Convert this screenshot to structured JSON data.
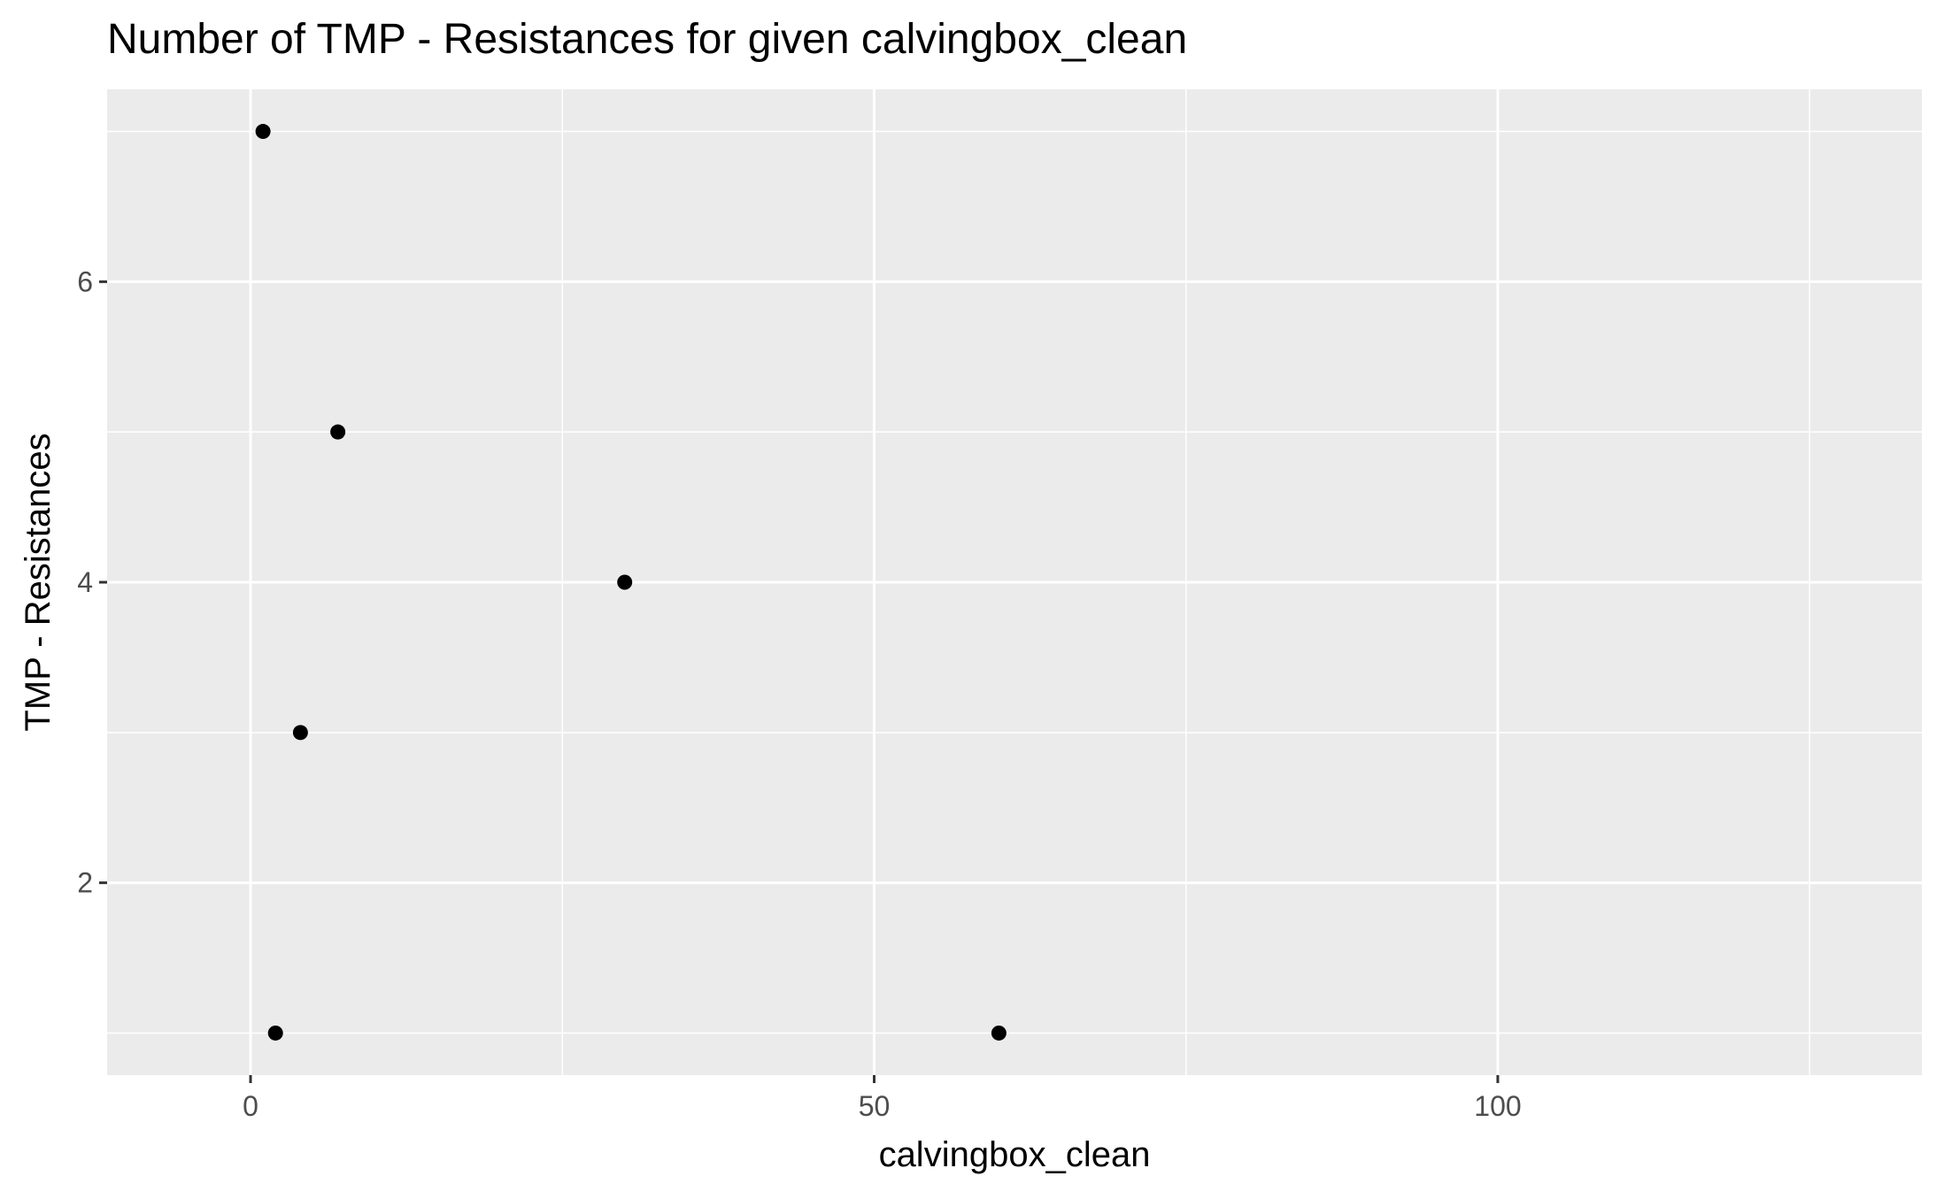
{
  "chart_data": {
    "type": "scatter",
    "title": "Number of TMP - Resistances for given calvingbox_clean",
    "xlabel": "calvingbox_clean",
    "ylabel": "TMP - Resistances",
    "xlim": [
      -11.5,
      134
    ],
    "ylim": [
      0.72,
      7.28
    ],
    "x_ticks": [
      0,
      50,
      100
    ],
    "x_minor_ticks": [
      25,
      75,
      125
    ],
    "y_ticks": [
      2,
      4,
      6
    ],
    "y_minor_ticks": [
      1,
      3,
      5,
      7
    ],
    "grid": true,
    "legend": "none",
    "panel_color": "#EBEBEB",
    "grid_color": "#FFFFFF",
    "point_color": "#000000",
    "points": [
      {
        "x": 1,
        "y": 7
      },
      {
        "x": 7,
        "y": 5
      },
      {
        "x": 30,
        "y": 4
      },
      {
        "x": 4,
        "y": 3
      },
      {
        "x": 2,
        "y": 1
      },
      {
        "x": 60,
        "y": 1
      }
    ]
  }
}
